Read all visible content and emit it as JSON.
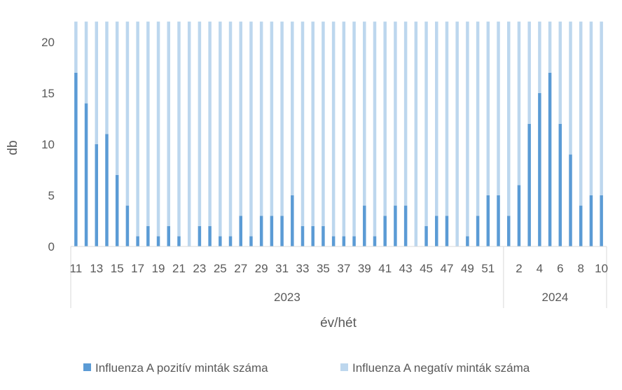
{
  "chart_data": {
    "type": "bar",
    "stacked": true,
    "ylabel": "db",
    "xlabel": "év/hét",
    "ylim": [
      0,
      20
    ],
    "yticks": [
      0,
      5,
      10,
      15,
      20
    ],
    "grid": false,
    "legend_position": "bottom",
    "stack_total": 22,
    "categories": [
      "11",
      "12",
      "13",
      "14",
      "15",
      "16",
      "17",
      "18",
      "19",
      "20",
      "21",
      "22",
      "23",
      "24",
      "25",
      "26",
      "27",
      "28",
      "29",
      "30",
      "31",
      "32",
      "33",
      "34",
      "35",
      "36",
      "37",
      "38",
      "39",
      "40",
      "41",
      "42",
      "43",
      "44",
      "45",
      "46",
      "47",
      "48",
      "49",
      "50",
      "51",
      "52",
      "1",
      "2",
      "3",
      "4",
      "5",
      "6",
      "7",
      "8",
      "9",
      "10"
    ],
    "year_of_category": [
      "2023",
      "2023",
      "2023",
      "2023",
      "2023",
      "2023",
      "2023",
      "2023",
      "2023",
      "2023",
      "2023",
      "2023",
      "2023",
      "2023",
      "2023",
      "2023",
      "2023",
      "2023",
      "2023",
      "2023",
      "2023",
      "2023",
      "2023",
      "2023",
      "2023",
      "2023",
      "2023",
      "2023",
      "2023",
      "2023",
      "2023",
      "2023",
      "2023",
      "2023",
      "2023",
      "2023",
      "2023",
      "2023",
      "2023",
      "2023",
      "2023",
      "2023",
      "2024",
      "2024",
      "2024",
      "2024",
      "2024",
      "2024",
      "2024",
      "2024",
      "2024",
      "2024"
    ],
    "tick_labels": [
      "11",
      "13",
      "15",
      "17",
      "19",
      "21",
      "23",
      "25",
      "27",
      "29",
      "31",
      "33",
      "35",
      "37",
      "39",
      "41",
      "43",
      "45",
      "47",
      "49",
      "51",
      "2",
      "4",
      "6",
      "8",
      "10"
    ],
    "tick_label_category_index": [
      0,
      2,
      4,
      6,
      8,
      10,
      12,
      14,
      16,
      18,
      20,
      22,
      24,
      26,
      28,
      30,
      32,
      34,
      36,
      38,
      40,
      43,
      45,
      47,
      49,
      51
    ],
    "years": [
      {
        "label": "2023",
        "count": 42
      },
      {
        "label": "2024",
        "count": 10
      }
    ],
    "series": [
      {
        "name": "Influenza A pozitív minták száma",
        "color": "#5b9bd5",
        "values": [
          17,
          14,
          10,
          11,
          7,
          4,
          1,
          2,
          1,
          2,
          1,
          0,
          2,
          2,
          1,
          1,
          3,
          1,
          3,
          3,
          3,
          5,
          2,
          2,
          2,
          1,
          1,
          1,
          4,
          1,
          3,
          4,
          4,
          0,
          2,
          3,
          3,
          0,
          1,
          3,
          5,
          5,
          3,
          6,
          12,
          15,
          17,
          12,
          9,
          4,
          5,
          5
        ]
      },
      {
        "name": "Influenza A negatív minták száma",
        "color": "#bdd7ee",
        "values": [
          5,
          8,
          12,
          11,
          15,
          18,
          21,
          20,
          21,
          20,
          21,
          22,
          20,
          20,
          21,
          21,
          19,
          21,
          19,
          19,
          19,
          17,
          20,
          20,
          20,
          21,
          21,
          21,
          18,
          21,
          19,
          18,
          18,
          22,
          20,
          19,
          19,
          22,
          21,
          19,
          17,
          17,
          19,
          16,
          10,
          7,
          5,
          10,
          13,
          18,
          17,
          17
        ]
      }
    ]
  },
  "legend": {
    "positive_label": "Influenza A pozitív minták száma",
    "negative_label": "Influenza A negatív minták száma"
  }
}
